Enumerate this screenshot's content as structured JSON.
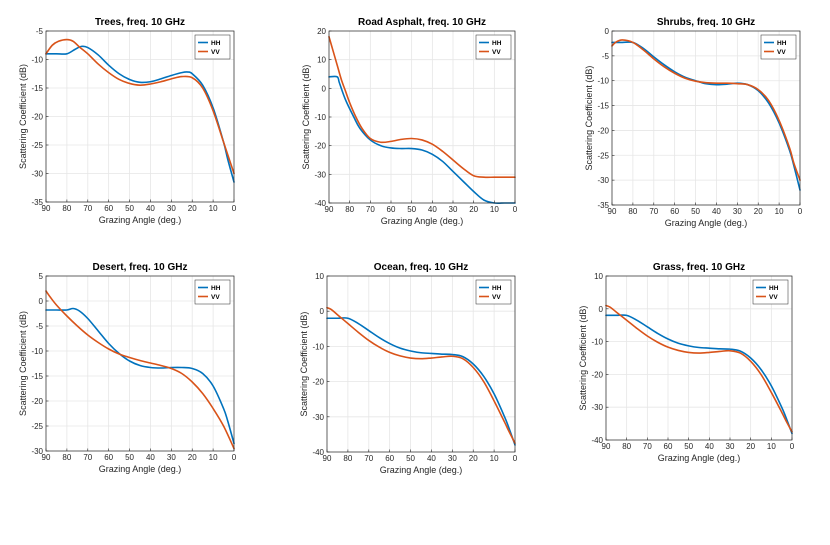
{
  "colors": {
    "HH": "#0072BD",
    "VV": "#D95319",
    "grid": "#e6e6e6",
    "axis": "#262626"
  },
  "chart_data": [
    {
      "type": "line",
      "title": "Trees, freq.  10 GHz",
      "xlabel": "Grazing Angle (deg.)",
      "ylabel": "Scattering Coefficient (dB)",
      "xlim": [
        0,
        90
      ],
      "ylim": [
        -35,
        -5
      ],
      "x_ticks": [
        90,
        80,
        70,
        60,
        50,
        40,
        30,
        20,
        10,
        0
      ],
      "y_ticks": [
        -5,
        -10,
        -15,
        -20,
        -25,
        -30,
        -35
      ],
      "legend_position": "top-right",
      "grid": true,
      "series": [
        {
          "name": "HH",
          "x": [
            90,
            85,
            80,
            76,
            73,
            70,
            65,
            60,
            55,
            50,
            45,
            40,
            35,
            30,
            25,
            22,
            20,
            15,
            10,
            5,
            3,
            0
          ],
          "y": [
            -9,
            -9,
            -9,
            -8.2,
            -7.7,
            -7.9,
            -9.2,
            -11,
            -12.5,
            -13.5,
            -14,
            -13.9,
            -13.4,
            -12.8,
            -12.3,
            -12.2,
            -12.5,
            -14.5,
            -18.5,
            -24.5,
            -27.5,
            -31.5
          ]
        },
        {
          "name": "VV",
          "x": [
            90,
            87,
            84,
            80,
            77,
            74,
            70,
            65,
            60,
            55,
            50,
            45,
            40,
            35,
            30,
            25,
            20,
            15,
            10,
            5,
            0
          ],
          "y": [
            -9,
            -7.5,
            -6.8,
            -6.5,
            -6.8,
            -7.8,
            -9,
            -10.8,
            -12.3,
            -13.5,
            -14.2,
            -14.5,
            -14.3,
            -13.9,
            -13.4,
            -13,
            -13.2,
            -15,
            -19,
            -24.5,
            -30
          ]
        }
      ]
    },
    {
      "type": "line",
      "title": "Road Asphalt, freq.  10 GHz",
      "xlabel": "Grazing Angle (deg.)",
      "ylabel": "Scattering Coefficient (dB)",
      "xlim": [
        0,
        90
      ],
      "ylim": [
        -40,
        20
      ],
      "x_ticks": [
        90,
        80,
        70,
        60,
        50,
        40,
        30,
        20,
        10,
        0
      ],
      "y_ticks": [
        20,
        10,
        0,
        -10,
        -20,
        -30,
        -40
      ],
      "legend_position": "top-right",
      "grid": true,
      "series": [
        {
          "name": "HH",
          "x": [
            90,
            86,
            85,
            82,
            78,
            75,
            70,
            65,
            60,
            55,
            50,
            45,
            40,
            35,
            30,
            25,
            20,
            15,
            10,
            5,
            0
          ],
          "y": [
            4,
            4,
            2,
            -4,
            -10,
            -14,
            -18,
            -20,
            -20.8,
            -21,
            -21,
            -21.5,
            -23,
            -25.5,
            -29,
            -32.5,
            -36,
            -39,
            -40,
            -40,
            -40
          ]
        },
        {
          "name": "VV",
          "x": [
            90,
            88,
            86,
            84,
            82,
            80,
            77,
            74,
            70,
            65,
            60,
            55,
            50,
            45,
            40,
            35,
            30,
            25,
            20,
            15,
            10,
            5,
            0
          ],
          "y": [
            18,
            13,
            8,
            3,
            -1,
            -5,
            -10,
            -14,
            -17.5,
            -18.8,
            -18.5,
            -17.8,
            -17.5,
            -18,
            -19.5,
            -22,
            -25,
            -28,
            -30.5,
            -31,
            -31,
            -31,
            -31
          ]
        }
      ]
    },
    {
      "type": "line",
      "title": "Shrubs, freq.  10 GHz",
      "xlabel": "Grazing Angle (deg.)",
      "ylabel": "Scattering Coefficient (dB)",
      "xlim": [
        0,
        90
      ],
      "ylim": [
        -35,
        0
      ],
      "x_ticks": [
        90,
        80,
        70,
        60,
        50,
        40,
        30,
        20,
        10,
        0
      ],
      "y_ticks": [
        0,
        -5,
        -10,
        -15,
        -20,
        -25,
        -30,
        -35
      ],
      "legend_position": "top-right",
      "grid": true,
      "series": [
        {
          "name": "HH",
          "x": [
            90,
            85,
            80,
            75,
            70,
            65,
            60,
            55,
            50,
            45,
            40,
            35,
            30,
            25,
            20,
            15,
            10,
            5,
            3,
            0
          ],
          "y": [
            -2.3,
            -2.3,
            -2.3,
            -3.5,
            -5.2,
            -6.8,
            -8.2,
            -9.3,
            -10,
            -10.6,
            -10.8,
            -10.7,
            -10.5,
            -10.8,
            -12,
            -14.5,
            -18.5,
            -24,
            -27,
            -32
          ]
        },
        {
          "name": "VV",
          "x": [
            90,
            88,
            85,
            80,
            75,
            70,
            65,
            60,
            55,
            50,
            45,
            40,
            35,
            30,
            25,
            20,
            15,
            10,
            5,
            3,
            0
          ],
          "y": [
            -3,
            -2.2,
            -1.8,
            -2.3,
            -3.8,
            -5.6,
            -7.2,
            -8.5,
            -9.5,
            -10.1,
            -10.4,
            -10.5,
            -10.5,
            -10.6,
            -10.8,
            -11.8,
            -14,
            -18,
            -23.5,
            -26.5,
            -30
          ]
        }
      ]
    },
    {
      "type": "line",
      "title": "Desert, freq.  10 GHz",
      "xlabel": "Grazing Angle (deg.)",
      "ylabel": "Scattering Coefficient (dB)",
      "xlim": [
        0,
        90
      ],
      "ylim": [
        -30,
        5
      ],
      "x_ticks": [
        90,
        80,
        70,
        60,
        50,
        40,
        30,
        20,
        10,
        0
      ],
      "y_ticks": [
        5,
        0,
        -5,
        -10,
        -15,
        -20,
        -25,
        -30
      ],
      "legend_position": "top-right",
      "grid": true,
      "series": [
        {
          "name": "HH",
          "x": [
            90,
            85,
            80,
            77,
            74,
            70,
            65,
            60,
            55,
            50,
            45,
            40,
            35,
            30,
            25,
            20,
            15,
            10,
            5,
            3,
            0
          ],
          "y": [
            -1.8,
            -1.8,
            -1.8,
            -1.5,
            -2,
            -3.5,
            -6,
            -8.5,
            -10.5,
            -12,
            -12.9,
            -13.3,
            -13.4,
            -13.3,
            -13.3,
            -13.5,
            -14.5,
            -17,
            -21.5,
            -24,
            -28.5
          ]
        },
        {
          "name": "VV",
          "x": [
            90,
            88,
            85,
            80,
            75,
            70,
            65,
            60,
            55,
            50,
            45,
            40,
            35,
            30,
            25,
            20,
            15,
            10,
            5,
            0
          ],
          "y": [
            2,
            0.8,
            -0.8,
            -3,
            -5,
            -6.8,
            -8.3,
            -9.6,
            -10.6,
            -11.3,
            -11.9,
            -12.4,
            -12.9,
            -13.5,
            -14.5,
            -16.2,
            -18.5,
            -21.5,
            -25,
            -29.5
          ]
        }
      ]
    },
    {
      "type": "line",
      "title": "Ocean, freq.  10 GHz",
      "xlabel": "Grazing Angle (deg.)",
      "ylabel": "Scattering Coefficient (dB)",
      "xlim": [
        0,
        90
      ],
      "ylim": [
        -40,
        10
      ],
      "x_ticks": [
        90,
        80,
        70,
        60,
        50,
        40,
        30,
        20,
        10,
        0
      ],
      "y_ticks": [
        10,
        0,
        -10,
        -20,
        -30,
        -40
      ],
      "legend_position": "top-right",
      "grid": true,
      "series": [
        {
          "name": "HH",
          "x": [
            90,
            85,
            80,
            75,
            70,
            65,
            60,
            55,
            50,
            45,
            40,
            35,
            30,
            25,
            20,
            15,
            10,
            5,
            3,
            0
          ],
          "y": [
            -2,
            -2,
            -2,
            -3.5,
            -5.5,
            -7.5,
            -9.2,
            -10.5,
            -11.3,
            -11.8,
            -12,
            -12.2,
            -12.3,
            -12.9,
            -15,
            -18.5,
            -23.5,
            -30,
            -33,
            -38
          ]
        },
        {
          "name": "VV",
          "x": [
            90,
            88,
            85,
            80,
            75,
            70,
            65,
            60,
            55,
            50,
            45,
            40,
            35,
            30,
            25,
            20,
            15,
            10,
            5,
            3,
            0
          ],
          "y": [
            1,
            0.5,
            -1,
            -3.5,
            -6,
            -8.3,
            -10.2,
            -11.7,
            -12.7,
            -13.3,
            -13.5,
            -13.3,
            -13,
            -12.8,
            -13.5,
            -16,
            -20,
            -25.5,
            -31.5,
            -34,
            -37.5
          ]
        }
      ]
    },
    {
      "type": "line",
      "title": "Grass, freq. 10 GHz",
      "xlabel": "Grazing Angle (deg.)",
      "ylabel": "Scattering Coefficient (dB)",
      "xlim": [
        0,
        90
      ],
      "ylim": [
        -40,
        10
      ],
      "x_ticks": [
        90,
        80,
        70,
        60,
        50,
        40,
        30,
        20,
        10,
        0
      ],
      "y_ticks": [
        10,
        0,
        -10,
        -20,
        -30,
        -40
      ],
      "legend_position": "top-right",
      "grid": true,
      "series": [
        {
          "name": "HH",
          "x": [
            90,
            85,
            80,
            75,
            70,
            65,
            60,
            55,
            50,
            45,
            40,
            35,
            30,
            25,
            20,
            15,
            10,
            5,
            3,
            0
          ],
          "y": [
            -2,
            -2,
            -2,
            -3.5,
            -5.5,
            -7.5,
            -9.2,
            -10.5,
            -11.3,
            -11.8,
            -12,
            -12.2,
            -12.3,
            -12.9,
            -15,
            -18.5,
            -23.5,
            -30,
            -33,
            -38
          ]
        },
        {
          "name": "VV",
          "x": [
            90,
            88,
            85,
            80,
            75,
            70,
            65,
            60,
            55,
            50,
            45,
            40,
            35,
            30,
            25,
            20,
            15,
            10,
            5,
            3,
            0
          ],
          "y": [
            1,
            0.5,
            -1,
            -3.5,
            -6,
            -8.3,
            -10.2,
            -11.7,
            -12.7,
            -13.3,
            -13.5,
            -13.3,
            -13,
            -12.8,
            -13.5,
            -16,
            -20,
            -25.5,
            -31.5,
            -34,
            -37.5
          ]
        }
      ]
    }
  ]
}
